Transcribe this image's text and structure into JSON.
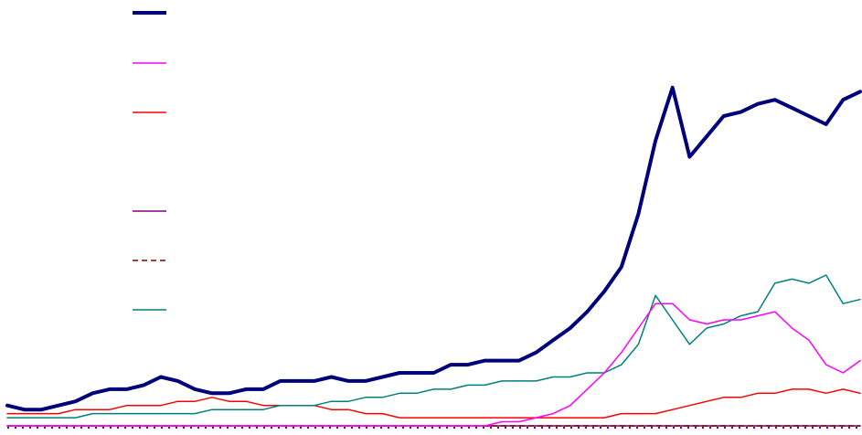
{
  "chart_data": {
    "type": "line",
    "title": "",
    "xlabel": "",
    "ylabel": "",
    "grid": false,
    "legend_position": "top-left",
    "xlim": [
      0,
      100
    ],
    "ylim": [
      0,
      100
    ],
    "x": [
      0,
      2,
      4,
      6,
      8,
      10,
      12,
      14,
      16,
      18,
      20,
      22,
      24,
      26,
      28,
      30,
      32,
      34,
      36,
      38,
      40,
      42,
      44,
      46,
      48,
      50,
      52,
      54,
      56,
      58,
      60,
      62,
      64,
      66,
      68,
      70,
      72,
      74,
      76,
      78,
      80,
      82,
      84,
      86,
      88,
      90,
      92,
      94,
      96,
      98,
      100
    ],
    "series": [
      {
        "color": "#00007b",
        "width": 4,
        "dash": "",
        "values": [
          5,
          4,
          4,
          5,
          6,
          8,
          9,
          9,
          10,
          12,
          11,
          9,
          8,
          8,
          9,
          9,
          11,
          11,
          11,
          12,
          11,
          11,
          12,
          13,
          13,
          13,
          15,
          15,
          16,
          16,
          16,
          18,
          21,
          24,
          28,
          33,
          39,
          52,
          70,
          83,
          66,
          71,
          76,
          77,
          79,
          80,
          78,
          76,
          74,
          80,
          82
        ]
      },
      {
        "color": "#ff00ff",
        "width": 1.5,
        "dash": "",
        "values": [
          0,
          0,
          0,
          0,
          0,
          0,
          0,
          0,
          0,
          0,
          0,
          0,
          0,
          0,
          0,
          0,
          0,
          0,
          0,
          0,
          0,
          0,
          0,
          0,
          0,
          0,
          0,
          0,
          0,
          1,
          1,
          2,
          3,
          5,
          9,
          13,
          18,
          24,
          30,
          30,
          26,
          25,
          26,
          26,
          27,
          28,
          24,
          21,
          15,
          13,
          16
        ]
      },
      {
        "color": "#ff0000",
        "width": 1.5,
        "dash": "",
        "values": [
          3,
          3,
          3,
          3,
          4,
          4,
          4,
          5,
          5,
          5,
          6,
          6,
          7,
          6,
          6,
          5,
          5,
          5,
          5,
          4,
          4,
          3,
          3,
          2,
          2,
          2,
          2,
          2,
          2,
          2,
          2,
          2,
          2,
          2,
          2,
          2,
          3,
          3,
          3,
          4,
          5,
          6,
          7,
          7,
          8,
          8,
          9,
          9,
          8,
          9,
          8
        ]
      },
      {
        "color": "#7f007f",
        "width": 1.5,
        "dash": "",
        "values": [
          0,
          0,
          0,
          0,
          0,
          0,
          0,
          0,
          0,
          0,
          0,
          0,
          0,
          0,
          0,
          0,
          0,
          0,
          0,
          0,
          0,
          0,
          0,
          0,
          0,
          0,
          0,
          0,
          0,
          0,
          0,
          0,
          0,
          0,
          0,
          0,
          0,
          0,
          0,
          0,
          0,
          0,
          0,
          0,
          0,
          0,
          0,
          0,
          0,
          0,
          0
        ]
      },
      {
        "color": "#7f0000",
        "width": 1.5,
        "dash": "6,4",
        "values": [
          0,
          0,
          0,
          0,
          0,
          0,
          0,
          0,
          0,
          0,
          0,
          0,
          0,
          0,
          0,
          0,
          0,
          0,
          0,
          0,
          0,
          0,
          0,
          0,
          0,
          0,
          0,
          0,
          0,
          0,
          0,
          0,
          0,
          0,
          0,
          0,
          0,
          0,
          0,
          0,
          0,
          0,
          0,
          0,
          0,
          0,
          0,
          0,
          0,
          0,
          0
        ]
      },
      {
        "color": "#007f7f",
        "width": 1.5,
        "dash": "",
        "values": [
          2,
          2,
          2,
          2,
          2,
          3,
          3,
          3,
          3,
          3,
          3,
          3,
          4,
          4,
          4,
          4,
          5,
          5,
          5,
          6,
          6,
          7,
          7,
          8,
          8,
          9,
          9,
          10,
          10,
          11,
          11,
          11,
          12,
          12,
          13,
          13,
          15,
          20,
          32,
          26,
          20,
          24,
          25,
          27,
          28,
          35,
          36,
          35,
          37,
          30,
          31
        ]
      }
    ]
  }
}
